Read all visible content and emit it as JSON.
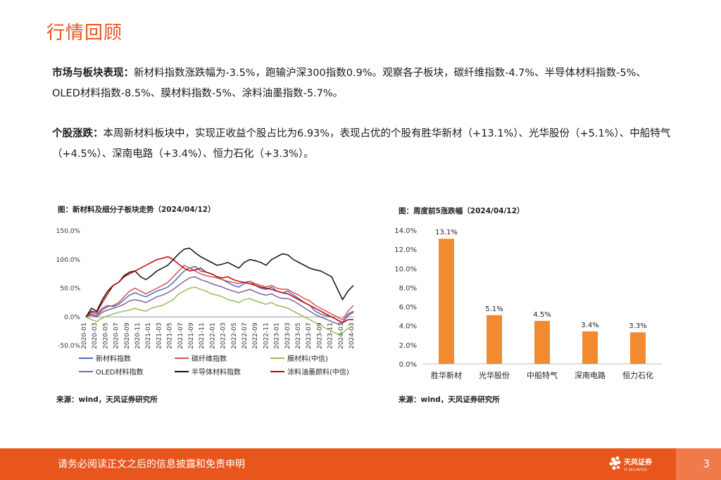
{
  "header": {
    "title": "行情回顾"
  },
  "sections": [
    {
      "label": "市场与板块表现：",
      "text": "新材料指数涨跌幅为-3.5%，跑输沪深300指数0.9%。观察各子板块，碳纤维指数-4.7%、半导体材料指数-5%、OLED材料指数-8.5%、膜材料指数-5%、涂料油墨指数-5.7%。"
    },
    {
      "label": "个股涨跌：",
      "text": "本周新材料板块中，实现正收益个股占比为6.93%，表现占优的个股有胜华新材（+13.1%）、光华股份（+5.1%）、中船特气（+4.5%）、深南电路（+3.4%）、恒力石化（+3.3%）。"
    }
  ],
  "chart_data": [
    {
      "type": "line",
      "title": "图：新材料及细分子板块走势（2024/04/12）",
      "source": "来源：wind，天风证券研究所",
      "ylim": [
        -50,
        150
      ],
      "y_ticks": [
        "150.0%",
        "100.0%",
        "50.0%",
        "0.0%",
        "-50.0%"
      ],
      "x_ticks": [
        "2020-01",
        "2020-03",
        "2020-05",
        "2020-07",
        "2020-09",
        "2020-11",
        "2021-01",
        "2021-03",
        "2021-05",
        "2021-07",
        "2021-09",
        "2021-11",
        "2022-01",
        "2022-03",
        "2022-05",
        "2022-07",
        "2022-09",
        "2022-11",
        "2023-01",
        "2023-03",
        "2023-05",
        "2023-07",
        "2023-09",
        "2023-11",
        "2024-01",
        "2024-03"
      ],
      "series": [
        {
          "name": "新材料指数",
          "color": "#4472c4",
          "values": [
            0,
            8,
            5,
            15,
            20,
            18,
            22,
            30,
            38,
            42,
            38,
            35,
            40,
            45,
            48,
            52,
            60,
            70,
            80,
            85,
            88,
            80,
            78,
            75,
            70,
            65,
            60,
            55,
            52,
            58,
            62,
            55,
            50,
            48,
            52,
            45,
            42,
            45,
            38,
            32,
            25,
            20,
            10,
            5,
            2,
            0,
            -5,
            -10,
            5,
            10
          ]
        },
        {
          "name": "碳纤维指数",
          "color": "#d9534f",
          "values": [
            0,
            5,
            2,
            12,
            18,
            20,
            25,
            35,
            45,
            50,
            45,
            40,
            45,
            50,
            55,
            60,
            70,
            80,
            90,
            85,
            80,
            75,
            72,
            70,
            68,
            65,
            62,
            60,
            58,
            60,
            62,
            58,
            55,
            52,
            55,
            50,
            48,
            48,
            42,
            38,
            32,
            28,
            20,
            15,
            10,
            5,
            0,
            -5,
            10,
            20
          ]
        },
        {
          "name": "膜材料(中信)",
          "color": "#9bbb59",
          "values": [
            0,
            -5,
            -8,
            -2,
            2,
            5,
            8,
            10,
            12,
            15,
            12,
            10,
            15,
            18,
            20,
            25,
            30,
            40,
            45,
            50,
            52,
            48,
            45,
            40,
            38,
            35,
            30,
            28,
            25,
            30,
            32,
            28,
            25,
            22,
            25,
            20,
            18,
            15,
            10,
            5,
            0,
            -5,
            -10,
            -15,
            -20,
            -25,
            -30,
            -28,
            -20,
            -15
          ]
        },
        {
          "name": "OLED材料指数",
          "color": "#8064a2",
          "values": [
            0,
            3,
            0,
            8,
            12,
            15,
            18,
            22,
            28,
            30,
            28,
            25,
            30,
            35,
            38,
            42,
            48,
            55,
            62,
            68,
            70,
            65,
            62,
            58,
            55,
            52,
            48,
            45,
            42,
            45,
            48,
            44,
            40,
            38,
            40,
            35,
            32,
            32,
            28,
            22,
            16,
            10,
            4,
            0,
            -4,
            -8,
            -12,
            -10,
            2,
            8
          ]
        },
        {
          "name": "半导体材料指数",
          "color": "#111111",
          "values": [
            0,
            15,
            10,
            30,
            45,
            55,
            60,
            72,
            78,
            80,
            70,
            65,
            72,
            80,
            85,
            90,
            100,
            110,
            118,
            120,
            112,
            105,
            100,
            95,
            90,
            92,
            95,
            90,
            85,
            95,
            100,
            98,
            95,
            90,
            100,
            105,
            110,
            108,
            100,
            95,
            90,
            85,
            82,
            80,
            75,
            70,
            50,
            30,
            45,
            55
          ]
        },
        {
          "name": "涂料油墨颜料(中信)",
          "color": "#c00000",
          "values": [
            0,
            10,
            8,
            25,
            40,
            55,
            60,
            70,
            75,
            80,
            85,
            90,
            95,
            100,
            102,
            105,
            100,
            92,
            85,
            80,
            82,
            85,
            78,
            75,
            70,
            68,
            70,
            65,
            62,
            60,
            58,
            55,
            52,
            50,
            48,
            45,
            42,
            40,
            35,
            30,
            25,
            20,
            15,
            10,
            5,
            0,
            -5,
            -10,
            -5,
            -5
          ]
        }
      ]
    },
    {
      "type": "bar",
      "title": "图：周度前5涨跌幅（2024/04/12）",
      "source": "来源：wind，天风证券研究所",
      "categories": [
        "胜华新材",
        "光华股份",
        "中船特气",
        "深南电路",
        "恒力石化"
      ],
      "values": [
        13.1,
        5.1,
        4.5,
        3.4,
        3.3
      ],
      "labels": [
        "13.1%",
        "5.1%",
        "4.5%",
        "3.4%",
        "3.3%"
      ],
      "ylim": [
        0,
        14
      ],
      "y_ticks": [
        "14.0%",
        "12.0%",
        "10.0%",
        "8.0%",
        "6.0%",
        "4.0%",
        "2.0%",
        "0.0%"
      ],
      "color": "#f28b30"
    }
  ],
  "footer": {
    "disclaimer": "请务必阅读正文之后的信息披露和免责申明",
    "logo_text": "天风证券",
    "logo_sub": "TF SECURITIES",
    "page": "3"
  },
  "colors": {
    "accent": "#e8541c",
    "footer": "#e8561e"
  }
}
